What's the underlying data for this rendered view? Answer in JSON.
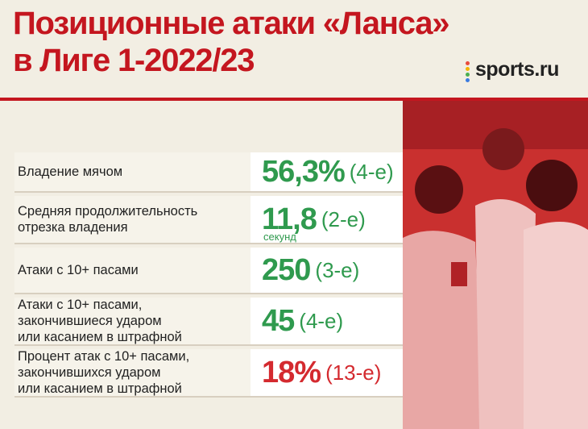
{
  "header": {
    "title_lines": [
      "Позиционные атаки «Ланса»",
      "в Лиге 1-2022/23"
    ],
    "logo": "sports.ru"
  },
  "table": {
    "rows": [
      {
        "label_lines": [
          "Владение мячом"
        ],
        "value": "56,3%",
        "rank": "(4-е)",
        "color": "#2f9a4e"
      },
      {
        "label_lines": [
          "Средняя продолжительность",
          "отрезка владения"
        ],
        "value": "11,8",
        "unit": "секунд",
        "rank": "(2-е)",
        "color": "#2f9a4e"
      },
      {
        "label_lines": [
          "Атаки с 10+ пасами"
        ],
        "value": "250",
        "rank": "(3-е)",
        "color": "#2f9a4e"
      },
      {
        "label_lines": [
          "Атаки с 10+ пасами,",
          "закончившиеся ударом",
          "или касанием в штрафной"
        ],
        "value": "45",
        "rank": "(4-е)",
        "color": "#2f9a4e"
      },
      {
        "label_lines": [
          "Процент атак с 10+ пасами,",
          "закончившихся ударом",
          "или касанием в штрафной"
        ],
        "value": "18%",
        "rank": "(13-е)",
        "color": "#d42a2f"
      }
    ]
  }
}
